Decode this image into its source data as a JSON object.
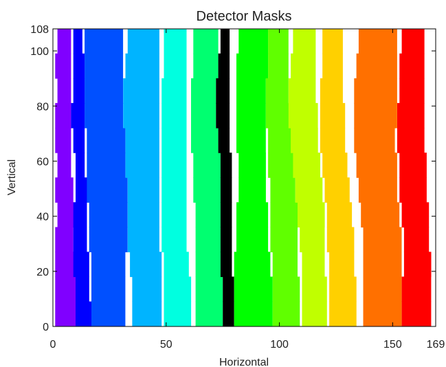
{
  "chart_data": {
    "type": "heatmap",
    "title": "Detector Masks",
    "xlabel": "Horizontal",
    "ylabel": "Vertical",
    "xlim": [
      0,
      169
    ],
    "ylim": [
      0,
      108
    ],
    "x_ticks": [
      0,
      50,
      100,
      150,
      169
    ],
    "y_ticks": [
      0,
      20,
      40,
      60,
      80,
      100,
      108
    ],
    "grid": false,
    "y_row_samples": [
      0,
      9,
      18,
      27,
      36,
      45,
      54,
      63,
      72,
      81,
      90,
      99,
      108
    ],
    "series": [
      {
        "color": "#8000ff",
        "left": [
          1,
          1,
          1,
          1,
          2,
          1,
          2,
          1,
          1,
          2,
          1,
          2,
          2
        ],
        "right": [
          10,
          10,
          10,
          9,
          10,
          9,
          8,
          8,
          8,
          8,
          8,
          8,
          8
        ]
      },
      {
        "color": "#0000ff",
        "left": [
          10,
          10,
          9,
          9,
          9,
          10,
          10,
          9,
          8,
          9,
          9,
          9,
          10
        ],
        "right": [
          17,
          16,
          16,
          15,
          15,
          15,
          14,
          14,
          14,
          14,
          14,
          13,
          14
        ]
      },
      {
        "color": "#0050ff",
        "left": [
          17,
          17,
          17,
          16,
          16,
          15,
          15,
          15,
          14,
          14,
          14,
          14,
          14
        ],
        "right": [
          32,
          32,
          32,
          33,
          33,
          33,
          32,
          32,
          31,
          31,
          31,
          31,
          31
        ]
      },
      {
        "color": "#00b4ff",
        "left": [
          35,
          35,
          34,
          33,
          33,
          33,
          32,
          32,
          31,
          31,
          32,
          33,
          33
        ],
        "right": [
          48,
          48,
          48,
          47,
          47,
          47,
          47,
          47,
          47,
          47,
          47,
          47,
          47
        ]
      },
      {
        "color": "#00ffe0",
        "left": [
          49,
          49,
          49,
          48,
          48,
          48,
          48,
          48,
          48,
          48,
          49,
          49,
          49
        ],
        "right": [
          61,
          61,
          60,
          59,
          59,
          59,
          59,
          59,
          59,
          59,
          59,
          59,
          59
        ]
      },
      {
        "color": "#00ff70",
        "left": [
          63,
          63,
          63,
          63,
          63,
          62,
          62,
          61,
          61,
          61,
          62,
          62,
          63
        ],
        "right": [
          75,
          75,
          74,
          74,
          74,
          74,
          74,
          73,
          72,
          72,
          73,
          73,
          73
        ]
      },
      {
        "color": "#000000",
        "left": [
          75,
          75,
          74,
          74,
          74,
          74,
          74,
          73,
          72,
          72,
          73,
          74,
          75
        ],
        "right": [
          80,
          80,
          79,
          79,
          79,
          79,
          79,
          78,
          78,
          78,
          78,
          78,
          79
        ]
      },
      {
        "color": "#00ff00",
        "left": [
          80,
          80,
          80,
          81,
          81,
          82,
          82,
          81,
          81,
          81,
          81,
          82,
          83
        ],
        "right": [
          97,
          97,
          96,
          95,
          95,
          94,
          94,
          94,
          94,
          94,
          95,
          95,
          95
        ]
      },
      {
        "color": "#60ff00",
        "left": [
          97,
          97,
          97,
          96,
          96,
          96,
          95,
          95,
          94,
          94,
          95,
          95,
          96
        ],
        "right": [
          109,
          109,
          108,
          108,
          108,
          107,
          107,
          106,
          105,
          104,
          104,
          104,
          104
        ]
      },
      {
        "color": "#c0ff00",
        "left": [
          110,
          110,
          110,
          109,
          108,
          107,
          106,
          105,
          104,
          104,
          105,
          106,
          107
        ],
        "right": [
          121,
          121,
          120,
          120,
          120,
          119,
          118,
          117,
          117,
          116,
          116,
          116,
          117
        ]
      },
      {
        "color": "#ffd000",
        "left": [
          122,
          122,
          122,
          121,
          121,
          120,
          119,
          118,
          118,
          118,
          119,
          119,
          120
        ],
        "right": [
          134,
          134,
          133,
          133,
          132,
          131,
          130,
          129,
          129,
          128,
          128,
          128,
          129
        ]
      },
      {
        "color": "#ff7000",
        "left": [
          137,
          137,
          137,
          137,
          136,
          135,
          134,
          133,
          133,
          133,
          134,
          135,
          136
        ],
        "right": [
          154,
          154,
          154,
          154,
          153,
          152,
          152,
          151,
          152,
          152,
          152,
          152,
          153
        ]
      },
      {
        "color": "#ff0000",
        "left": [
          154,
          154,
          155,
          155,
          154,
          153,
          153,
          152,
          152,
          153,
          153,
          154,
          155
        ],
        "right": [
          167,
          167,
          167,
          166,
          166,
          165,
          165,
          164,
          164,
          164,
          164,
          164,
          164
        ]
      }
    ]
  }
}
